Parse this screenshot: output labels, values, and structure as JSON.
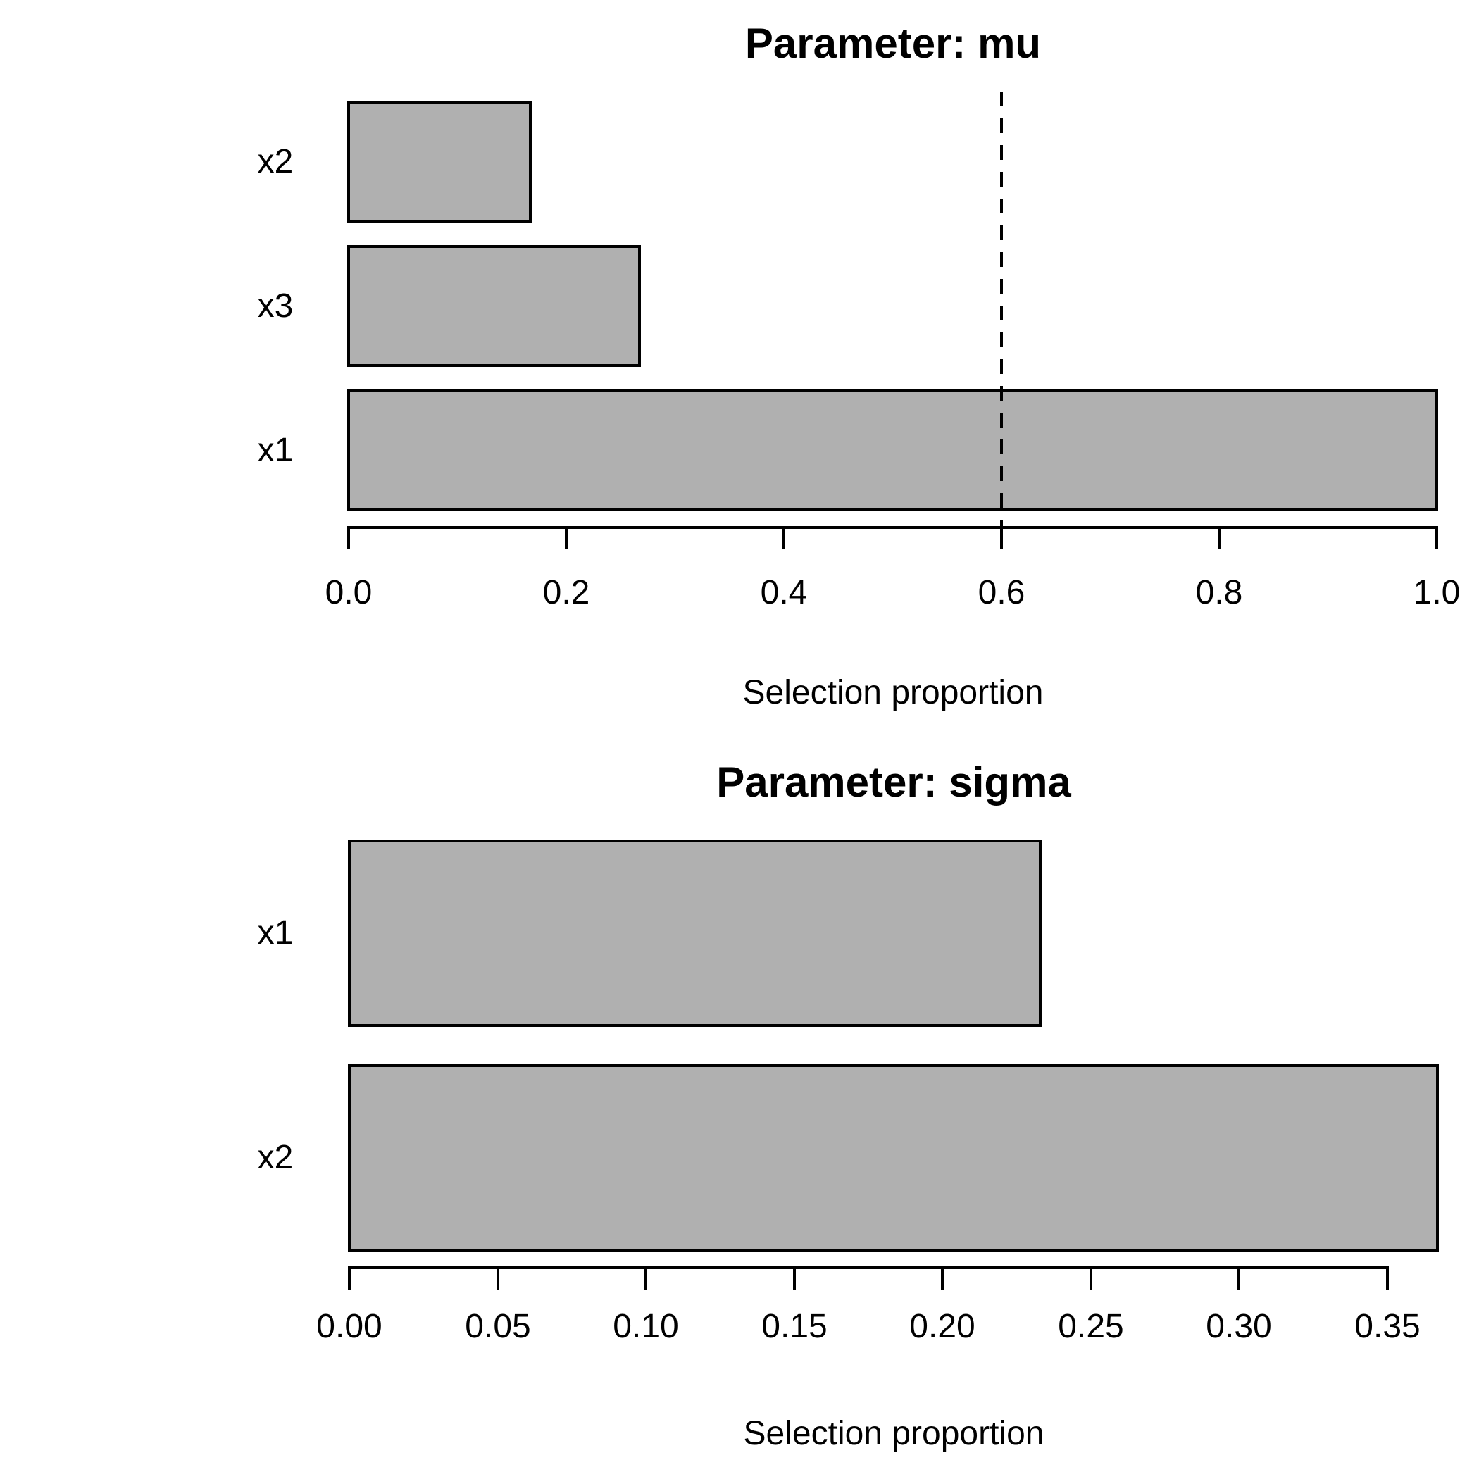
{
  "chart_data": [
    {
      "id": "mu",
      "type": "bar",
      "orientation": "horizontal",
      "title": "Parameter: mu",
      "xlabel": "Selection proportion",
      "categories": [
        "x2",
        "x3",
        "x1"
      ],
      "values": [
        0.167,
        0.267,
        1.0
      ],
      "xlim": [
        0,
        1.0
      ],
      "xticks": [
        0.0,
        0.2,
        0.4,
        0.6,
        0.8,
        1.0
      ],
      "xtick_labels": [
        "0.0",
        "0.2",
        "0.4",
        "0.6",
        "0.8",
        "1.0"
      ],
      "reference_line": {
        "value": 0.6,
        "style": "dashed",
        "color": "#000000"
      },
      "bar_fill": "#b0b0b0",
      "bar_border": "#000000",
      "grid": false,
      "legend": null
    },
    {
      "id": "sigma",
      "type": "bar",
      "orientation": "horizontal",
      "title": "Parameter: sigma",
      "xlabel": "Selection proportion",
      "categories": [
        "x1",
        "x2"
      ],
      "values": [
        0.233,
        0.367
      ],
      "xlim": [
        0,
        0.367
      ],
      "xticks": [
        0.0,
        0.05,
        0.1,
        0.15,
        0.2,
        0.25,
        0.3,
        0.35
      ],
      "xtick_labels": [
        "0.00",
        "0.05",
        "0.10",
        "0.15",
        "0.20",
        "0.25",
        "0.30",
        "0.35"
      ],
      "reference_line": null,
      "bar_fill": "#b0b0b0",
      "bar_border": "#000000",
      "grid": false,
      "legend": null
    }
  ]
}
